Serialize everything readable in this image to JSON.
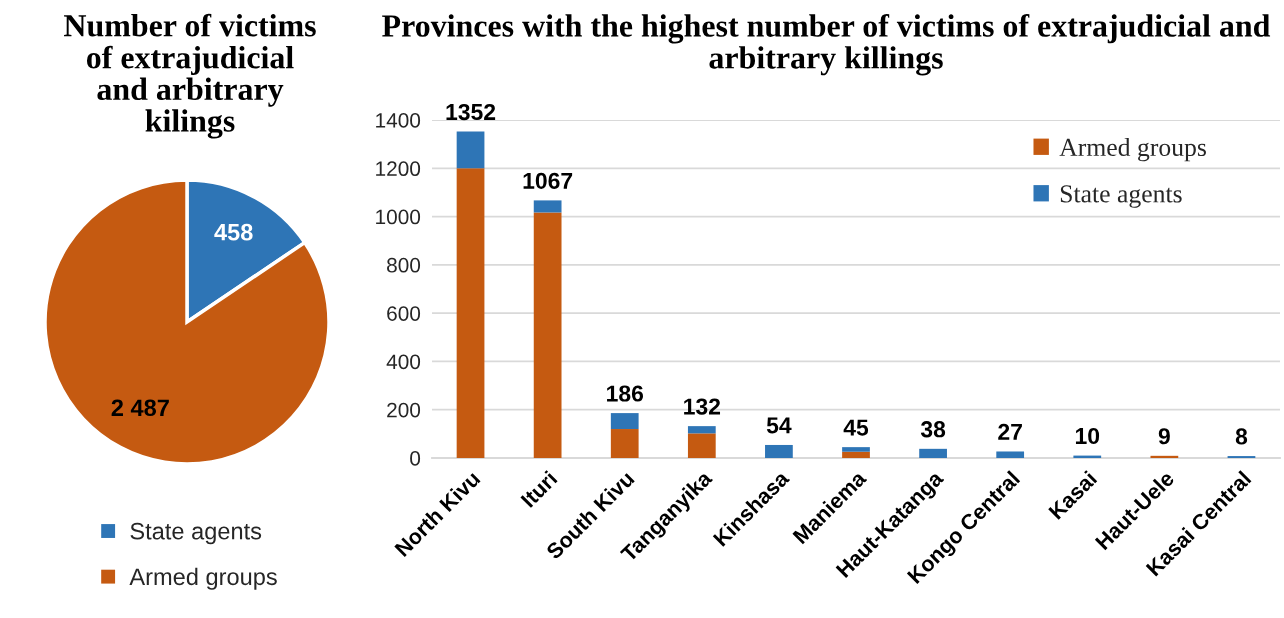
{
  "chart_data": [
    {
      "type": "pie",
      "title": "Number of victims of extrajudicial and arbitrary kilings",
      "categories": [
        "State agents",
        "Armed groups"
      ],
      "values": [
        458,
        2487
      ],
      "colors": [
        "#2e75b6",
        "#c55a11"
      ],
      "value_labels": [
        "458",
        "2 487"
      ],
      "legend": "bottom"
    },
    {
      "type": "bar",
      "title": "Provinces with the highest number of victims of extrajudicial and arbitrary killings",
      "categories": [
        "North Kivu",
        "Ituri",
        "South Kivu",
        "Tanganyika",
        "Kinshasa",
        "Maniema",
        "Haut-Katanga",
        "Kongo Central",
        "Kasai",
        "Haut-Uele",
        "Kasai Central"
      ],
      "series": [
        {
          "name": "Armed groups",
          "color": "#c55a11",
          "values": [
            1200,
            1017,
            120,
            102,
            null,
            26,
            null,
            null,
            null,
            9,
            null
          ]
        },
        {
          "name": "State agents",
          "color": "#2e75b6",
          "values": [
            152,
            50,
            66,
            30,
            54,
            19,
            38,
            27,
            10,
            null,
            8
          ]
        }
      ],
      "stacked": true,
      "totals": [
        "1352",
        "1067",
        "186",
        "132",
        "54",
        "45",
        "38",
        "27",
        "10",
        "9",
        "8"
      ],
      "ylim": [
        0,
        1400
      ],
      "yticks": [
        0,
        200,
        400,
        600,
        800,
        1000,
        1200,
        1400
      ],
      "grid": "y",
      "legend": "top right"
    }
  ]
}
